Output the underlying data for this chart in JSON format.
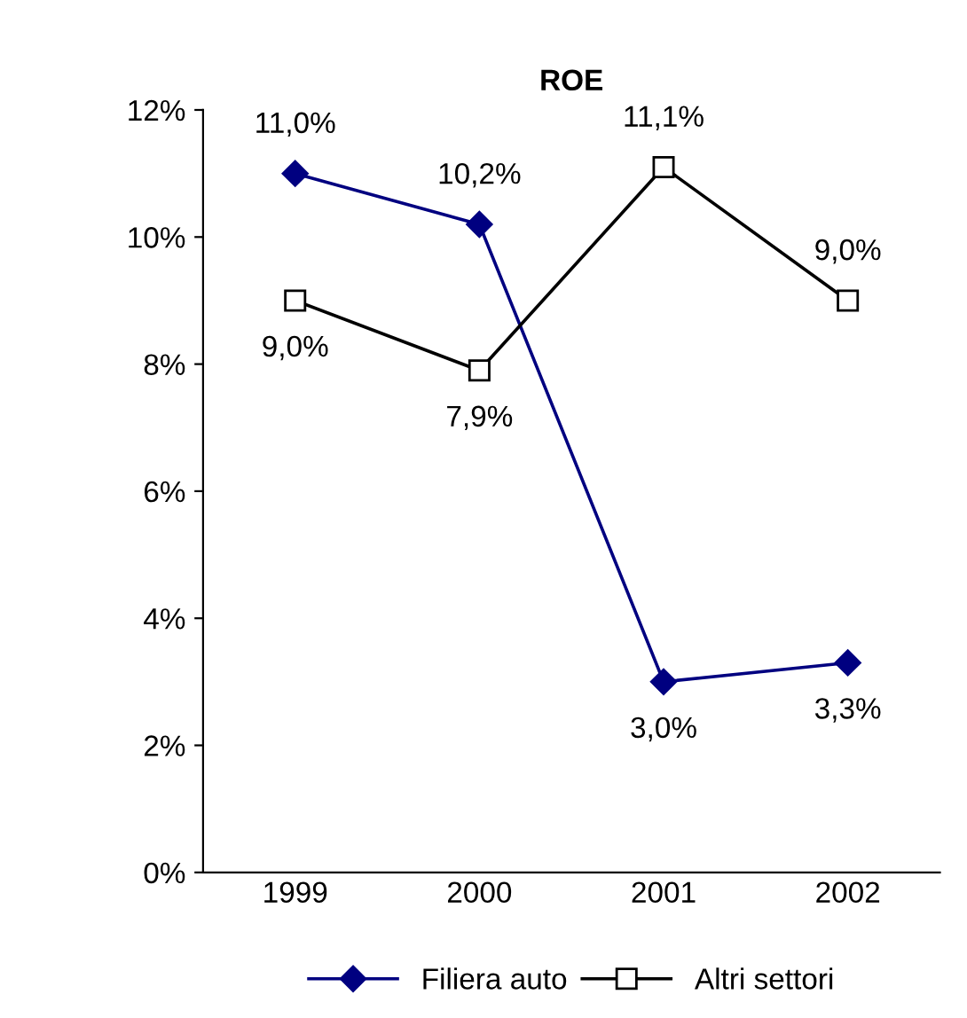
{
  "chart_data": {
    "type": "line",
    "title": "ROE",
    "categories": [
      "1999",
      "2000",
      "2001",
      "2002"
    ],
    "series": [
      {
        "name": "Filiera auto",
        "color": "#000080",
        "marker": "diamond",
        "values": [
          11.0,
          10.2,
          3.0,
          3.3
        ],
        "value_labels": [
          "11,0%",
          "10,2%",
          "3,0%",
          "3,3%"
        ]
      },
      {
        "name": "Altri settori",
        "color": "#000000",
        "marker": "square",
        "values": [
          9.0,
          7.9,
          11.1,
          9.0
        ],
        "value_labels": [
          "9,0%",
          "7,9%",
          "11,1%",
          "9,0%"
        ]
      }
    ],
    "ylim": [
      0,
      12
    ],
    "yticks": [
      {
        "value": 0,
        "label": "0%"
      },
      {
        "value": 2,
        "label": "2%"
      },
      {
        "value": 4,
        "label": "4%"
      },
      {
        "value": 6,
        "label": "6%"
      },
      {
        "value": 8,
        "label": "8%"
      },
      {
        "value": 10,
        "label": "10%"
      },
      {
        "value": 12,
        "label": "12%"
      }
    ],
    "grid": false,
    "legend": "bottom"
  }
}
